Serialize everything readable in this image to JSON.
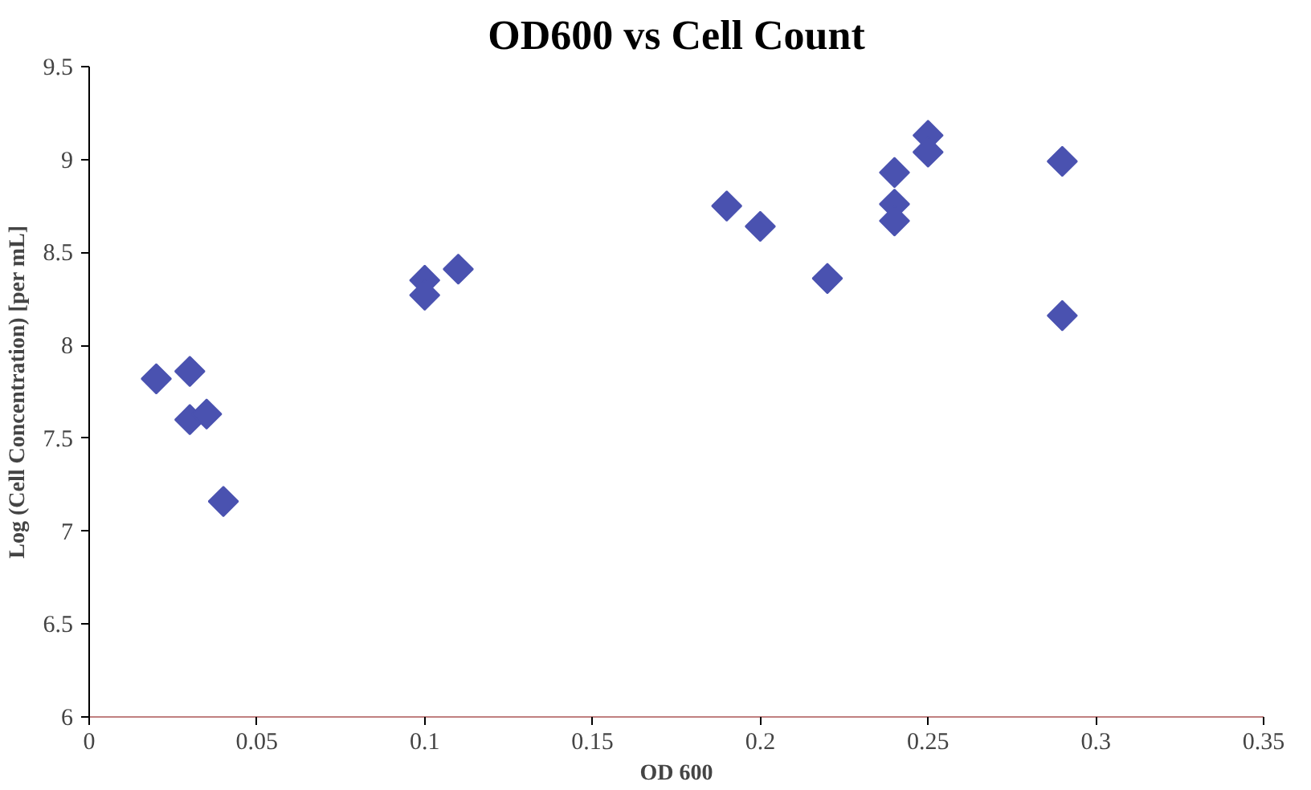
{
  "chart_data": {
    "type": "scatter",
    "title": "OD600 vs Cell Count",
    "xlabel": "OD 600",
    "ylabel": "Log (Cell Concentration) [per mL]",
    "x": [
      0.02,
      0.03,
      0.03,
      0.035,
      0.04,
      0.1,
      0.1,
      0.11,
      0.19,
      0.2,
      0.22,
      0.24,
      0.24,
      0.24,
      0.25,
      0.25,
      0.29,
      0.29
    ],
    "series": [
      {
        "color": "#4a52b0",
        "values": [
          7.82,
          7.86,
          7.6,
          7.63,
          7.16,
          8.35,
          8.27,
          8.41,
          8.75,
          8.64,
          8.36,
          8.93,
          8.76,
          8.67,
          9.13,
          9.04,
          8.99,
          8.16
        ]
      }
    ],
    "xlim": [
      0,
      0.35
    ],
    "ylim": [
      6,
      9.5
    ],
    "xticks": [
      0,
      0.05,
      0.1,
      0.15,
      0.2,
      0.25,
      0.3,
      0.35
    ],
    "yticks": [
      6,
      6.5,
      7,
      7.5,
      8,
      8.5,
      9,
      9.5
    ],
    "marker": "diamond",
    "grid": false
  }
}
